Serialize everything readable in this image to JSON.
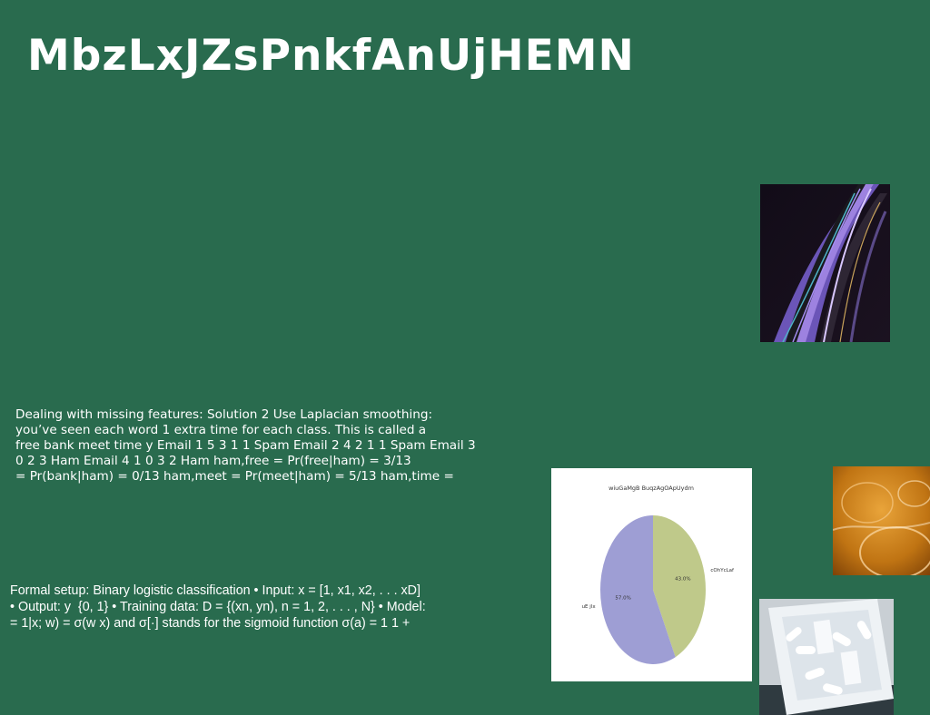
{
  "slide": {
    "title": "MbzLxJZsPnkfAnUjHEMN",
    "background_color": "#296b4e",
    "paragraph1": [
      "Dealing with missing features: Solution 2 Use Laplacian smoothing:",
      "you’ve seen each word 1 extra time for each class. This is called a",
      "free bank meet time y Email 1 5 3 1 1 Spam Email 2 4 2 1 1 Spam Email 3",
      "0 2 3 Ham Email 4 1 0 3 2 Ham \u0019ham,free = Pr(free|ham) = 3/13",
      "= Pr(bank|ham) = 0/13 \u0019ham,meet = Pr(meet|ham) = 5/13 \u0019ham,time ="
    ],
    "paragraph2": [
      "Formal setup: Binary logistic classification • Input: x = [1, x1, x2, . . . xD] \u0019",
      "• Output: y \u0019 {0, 1} • Training data: D = {(xn, yn), n = 1, 2, . . . , N} • Model:",
      "= 1|x; w) = σ(w \u0019x) and σ[·] stands for the sigmoid function σ(a) = 1 1 +"
    ]
  },
  "images": {
    "swirl": "abstract purple and black fluid art",
    "amber": "amber glass bubbles",
    "pills": "box of white pills"
  },
  "chart_data": {
    "type": "pie",
    "title": "wiuGaMgB BuqzAgOApUydm",
    "slices": [
      {
        "label": "cOhYcLaf",
        "value": 43.0,
        "pct_label": "43.0%",
        "color": "#bfc98a"
      },
      {
        "label": "uE jlx",
        "value": 57.0,
        "pct_label": "57.0%",
        "color": "#9e9ed4"
      }
    ],
    "start_angle_deg": 90,
    "direction": "clockwise"
  }
}
